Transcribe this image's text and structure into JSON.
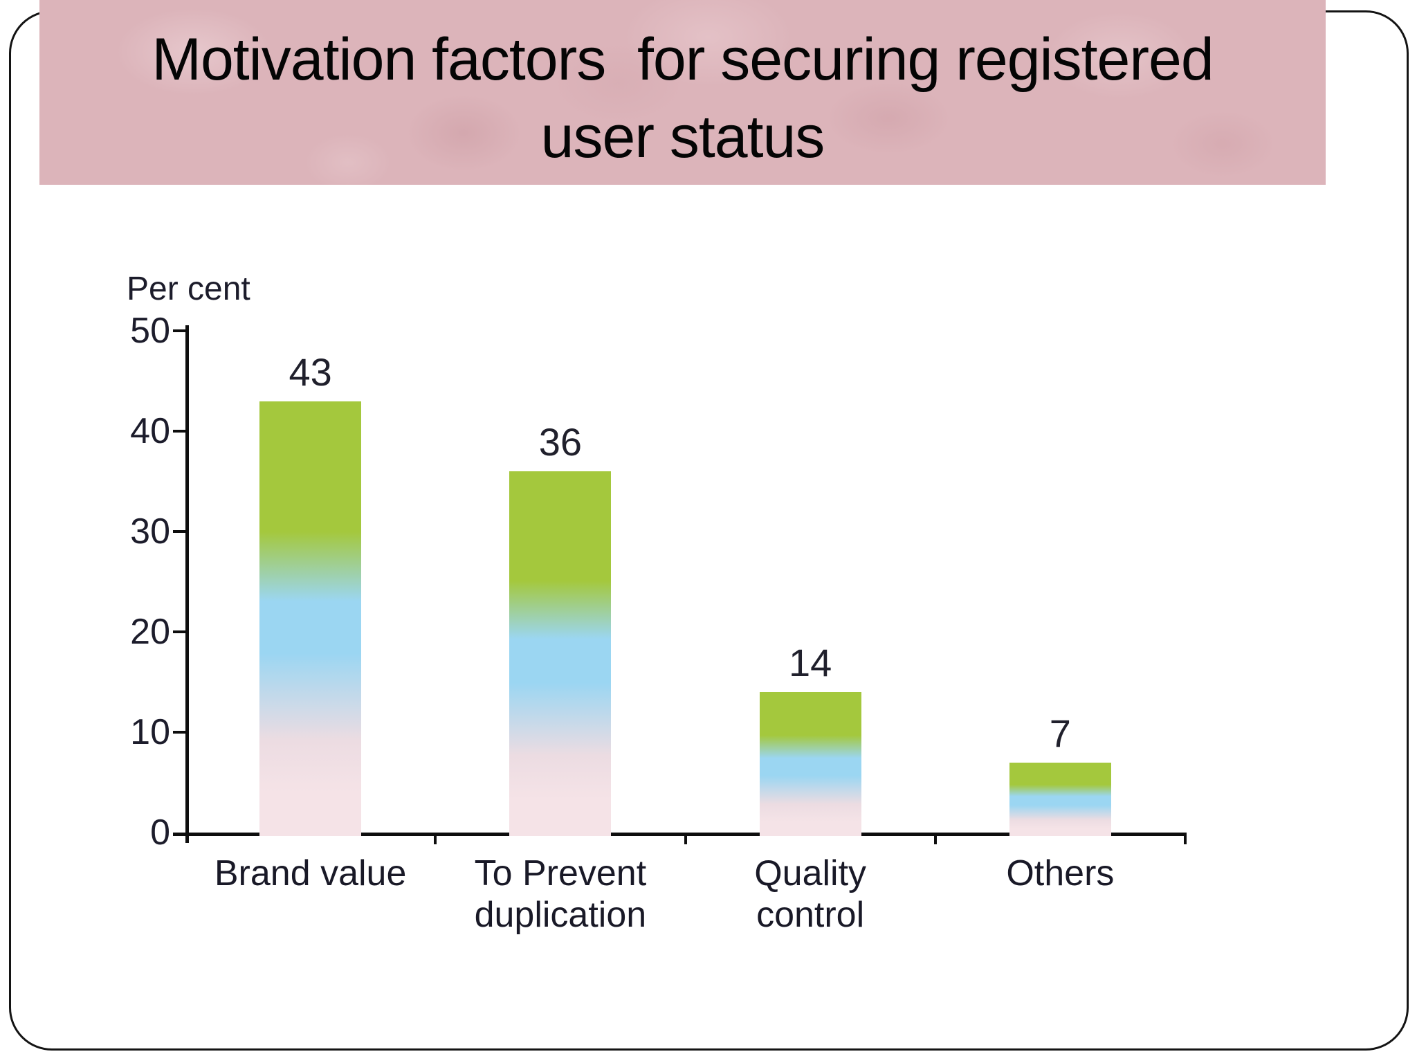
{
  "slide": {
    "title_lines": [
      "Motivation factors  for securing registered",
      "user status"
    ],
    "banner_color": "#dcb4ba",
    "frame_border_color": "#141414",
    "background_color": "#ffffff"
  },
  "chart_data": {
    "type": "bar",
    "title": "",
    "xlabel": "",
    "ylabel": "Per cent",
    "categories": [
      "Brand value",
      "To Prevent duplication",
      "Quality control",
      "Others"
    ],
    "category_label_lines": [
      [
        "Brand value"
      ],
      [
        "To Prevent",
        "duplication"
      ],
      [
        "Quality",
        "control"
      ],
      [
        "Others"
      ]
    ],
    "values": [
      43,
      36,
      14,
      7
    ],
    "data_labels": [
      "43",
      "36",
      "14",
      "7"
    ],
    "yticks": [
      0,
      10,
      20,
      30,
      40,
      50
    ],
    "ylim": [
      0,
      50
    ],
    "grid": false,
    "legend": "none",
    "bar_gradient": {
      "top_green": "#a4c83d",
      "mid_blue": "#9bd6f2",
      "bottom_pink": "#f5e3e7"
    },
    "axis_color": "#0e0e0e"
  }
}
